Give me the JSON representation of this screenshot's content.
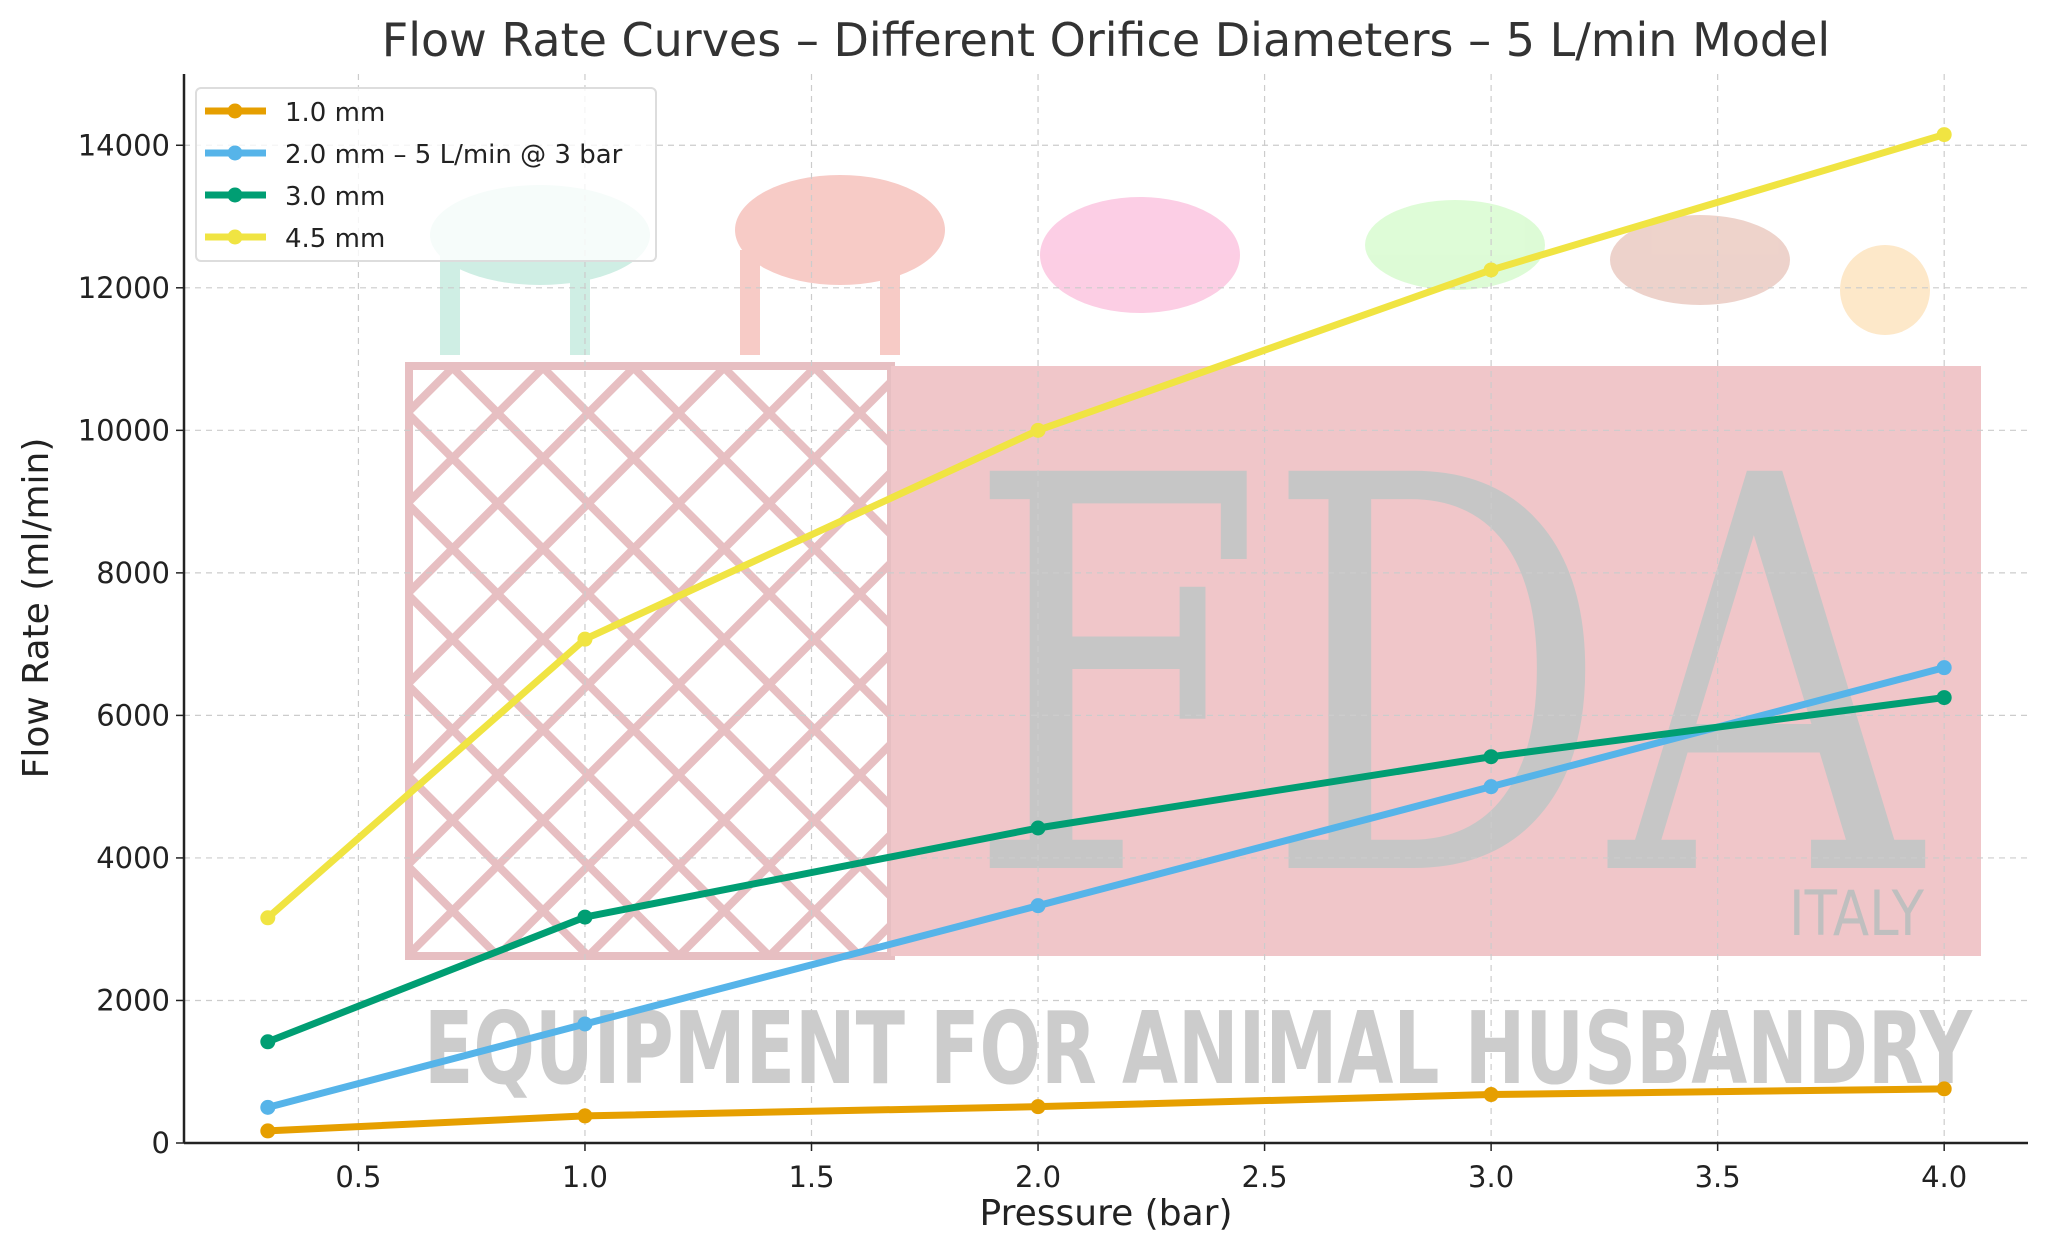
{
  "chart_data": {
    "type": "line",
    "title": "Flow Rate Curves – Different Orifice Diameters – 5 L/min Model",
    "xlabel": "Pressure (bar)",
    "ylabel": "Flow Rate (ml/min)",
    "xlim": [
      0.115,
      4.185
    ],
    "ylim": [
      0,
      15000
    ],
    "grid": true,
    "legend_position": "top-left",
    "x_ticks": [
      "0.5",
      "1.0",
      "1.5",
      "2.0",
      "2.5",
      "3.0",
      "3.5",
      "4.0"
    ],
    "y_ticks": [
      "0",
      "2000",
      "4000",
      "6000",
      "8000",
      "10000",
      "12000",
      "14000"
    ],
    "x": [
      0.3,
      1.0,
      2.0,
      3.0,
      4.0
    ],
    "series": [
      {
        "name": "1.0 mm",
        "color": "#E69F00",
        "values": [
          170,
          380,
          510,
          680,
          760
        ]
      },
      {
        "name": "2.0 mm – 5 L/min @ 3 bar",
        "color": "#56B4E9",
        "values": [
          500,
          1670,
          3330,
          5000,
          6670
        ]
      },
      {
        "name": "3.0 mm",
        "color": "#009E73",
        "values": [
          1420,
          3170,
          4420,
          5420,
          6250
        ]
      },
      {
        "name": "4.5 mm",
        "color": "#F0E442",
        "values": [
          3160,
          7070,
          10000,
          12250,
          14150
        ]
      }
    ]
  },
  "watermark": {
    "logo_text": "FDA",
    "country": "ITALY",
    "tagline": "EQUIPMENT FOR ANIMAL HUSBANDRY"
  }
}
